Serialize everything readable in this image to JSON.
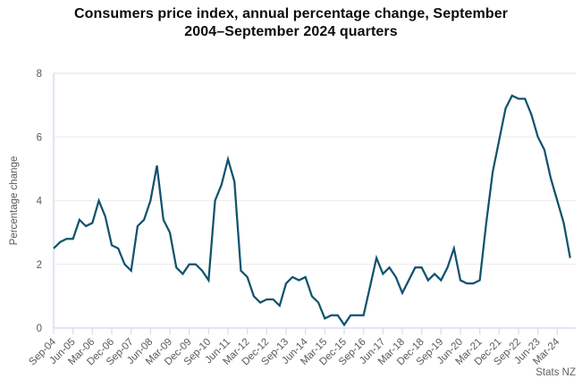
{
  "header": {
    "title_line1": "Consumers price index, annual percentage change, September",
    "title_line2": "2004–September 2024 quarters"
  },
  "source": "Stats NZ",
  "chart_data": {
    "type": "line",
    "title": "Consumers price index, annual percentage change, September 2004–September 2024 quarters",
    "xlabel": "",
    "ylabel": "Percentage change",
    "source": "Stats NZ",
    "legend": "none",
    "grid": "horizontal-light",
    "ylim": [
      0,
      8
    ],
    "yticks": [
      0,
      2,
      4,
      6,
      8
    ],
    "x_tick_labels": [
      "Sep-04",
      "Jun-05",
      "Mar-06",
      "Dec-06",
      "Sep-07",
      "Jun-08",
      "Mar-09",
      "Dec-09",
      "Sep-10",
      "Jun-11",
      "Mar-12",
      "Dec-12",
      "Sep-13",
      "Jun-14",
      "Mar-15",
      "Dec-15",
      "Sep-16",
      "Jun-17",
      "Mar-18",
      "Dec-18",
      "Sep-19",
      "Jun-20",
      "Mar-21",
      "Dec-21",
      "Sep-22",
      "Jun-23",
      "Mar-24"
    ],
    "x": [
      "Sep-04",
      "Dec-04",
      "Mar-05",
      "Jun-05",
      "Sep-05",
      "Dec-05",
      "Mar-06",
      "Jun-06",
      "Sep-06",
      "Dec-06",
      "Mar-07",
      "Jun-07",
      "Sep-07",
      "Dec-07",
      "Mar-08",
      "Jun-08",
      "Sep-08",
      "Dec-08",
      "Mar-09",
      "Jun-09",
      "Sep-09",
      "Dec-09",
      "Mar-10",
      "Jun-10",
      "Sep-10",
      "Dec-10",
      "Mar-11",
      "Jun-11",
      "Sep-11",
      "Dec-11",
      "Mar-12",
      "Jun-12",
      "Sep-12",
      "Dec-12",
      "Mar-13",
      "Jun-13",
      "Sep-13",
      "Dec-13",
      "Mar-14",
      "Jun-14",
      "Sep-14",
      "Dec-14",
      "Mar-15",
      "Jun-15",
      "Sep-15",
      "Dec-15",
      "Mar-16",
      "Jun-16",
      "Sep-16",
      "Dec-16",
      "Mar-17",
      "Jun-17",
      "Sep-17",
      "Dec-17",
      "Mar-18",
      "Jun-18",
      "Sep-18",
      "Dec-18",
      "Mar-19",
      "Jun-19",
      "Sep-19",
      "Dec-19",
      "Mar-20",
      "Jun-20",
      "Sep-20",
      "Dec-20",
      "Mar-21",
      "Jun-21",
      "Sep-21",
      "Dec-21",
      "Mar-22",
      "Jun-22",
      "Sep-22",
      "Dec-22",
      "Mar-23",
      "Jun-23",
      "Sep-23",
      "Dec-23",
      "Mar-24",
      "Jun-24",
      "Sep-24"
    ],
    "values": [
      2.5,
      2.7,
      2.8,
      2.8,
      3.4,
      3.2,
      3.3,
      4.0,
      3.5,
      2.6,
      2.5,
      2.0,
      1.8,
      3.2,
      3.4,
      4.0,
      5.1,
      3.4,
      3.0,
      1.9,
      1.7,
      2.0,
      2.0,
      1.8,
      1.5,
      4.0,
      4.5,
      5.3,
      4.6,
      1.8,
      1.6,
      1.0,
      0.8,
      0.9,
      0.9,
      0.7,
      1.4,
      1.6,
      1.5,
      1.6,
      1.0,
      0.8,
      0.3,
      0.4,
      0.4,
      0.1,
      0.4,
      0.4,
      0.4,
      1.3,
      2.2,
      1.7,
      1.9,
      1.6,
      1.1,
      1.5,
      1.9,
      1.9,
      1.5,
      1.7,
      1.5,
      1.9,
      2.5,
      1.5,
      1.4,
      1.4,
      1.5,
      3.3,
      4.9,
      5.9,
      6.9,
      7.3,
      7.2,
      7.2,
      6.7,
      6.0,
      5.6,
      4.7,
      4.0,
      3.3,
      2.2
    ],
    "colors": {
      "line": "#0f536d",
      "grid": "#ececec",
      "axis": "#d9def0",
      "tick_text": "#595959",
      "title_text": "#0c0c0c",
      "source_text": "#636363"
    }
  }
}
